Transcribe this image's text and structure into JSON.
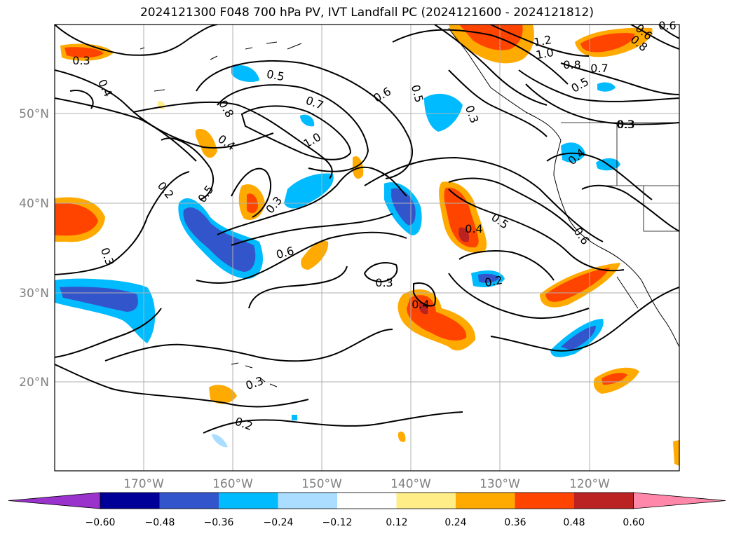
{
  "title": "2024121300 F048 700 hPa PV, IVT Landfall PC (2024121600 - 2024121812)",
  "colors": {
    "shading": [
      "#9933cc",
      "#000099",
      "#3355cc",
      "#00bbff",
      "#aaddff",
      "#ffffff",
      "#ffee88",
      "#ffaa00",
      "#ff4400",
      "#bb2222",
      "#ff88aa"
    ],
    "contour": "#000000",
    "grid": "#b0b0b0",
    "coast": "#000000"
  },
  "lat_labels": [
    "50°N",
    "40°N",
    "30°N",
    "20°N"
  ],
  "lon_labels": [
    "170°W",
    "160°W",
    "150°W",
    "140°W",
    "130°W",
    "120°W"
  ],
  "colorbar": {
    "ticks": [
      "−0.60",
      "−0.48",
      "−0.36",
      "−0.24",
      "−0.12",
      "0.12",
      "0.24",
      "0.36",
      "0.48",
      "0.60"
    ]
  },
  "contour_labels": [
    "0.3",
    "0.4",
    "0.2",
    "0.3",
    "0.5",
    "0.8",
    "0.4",
    "0.5",
    "0.3",
    "0.6",
    "0.7",
    "1.0",
    "0.6",
    "0.5",
    "0.3",
    "0.3",
    "0.4",
    "0.4",
    "0.5",
    "0.2",
    "0.6",
    "1.2",
    "1.0",
    "0.8",
    "0.7",
    "0.5",
    "0.3",
    "0.4",
    "0.6",
    "0.3",
    "0.2",
    "0.3",
    "0.8",
    "0.6"
  ]
}
